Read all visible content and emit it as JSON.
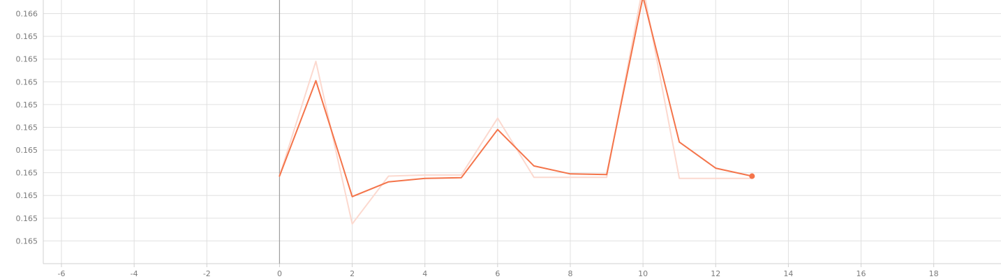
{
  "chart_data": {
    "type": "line",
    "title": "",
    "xlabel": "",
    "ylabel": "",
    "xlim": [
      -6.5,
      19.85
    ],
    "ylim": [
      0,
      11.6
    ],
    "x_ticks": [
      -6,
      -4,
      -2,
      0,
      2,
      4,
      6,
      8,
      10,
      12,
      14,
      16,
      18
    ],
    "y_ticks": [
      {
        "pos": 1,
        "label": "0.165"
      },
      {
        "pos": 2,
        "label": "0.165"
      },
      {
        "pos": 3,
        "label": "0.165"
      },
      {
        "pos": 4,
        "label": "0.165"
      },
      {
        "pos": 5,
        "label": "0.165"
      },
      {
        "pos": 6,
        "label": "0.165"
      },
      {
        "pos": 7,
        "label": "0.165"
      },
      {
        "pos": 8,
        "label": "0.165"
      },
      {
        "pos": 9,
        "label": "0.165"
      },
      {
        "pos": 10,
        "label": "0.165"
      },
      {
        "pos": 11,
        "label": "0.166"
      }
    ],
    "grid": true,
    "series": [
      {
        "role": "raw",
        "color": "#fcd9cf",
        "x": [
          0,
          1,
          2,
          3,
          4,
          5,
          6,
          7,
          8,
          9,
          10,
          11,
          12,
          13
        ],
        "y": [
          3.85,
          8.9,
          1.75,
          3.85,
          3.9,
          3.9,
          6.4,
          3.8,
          3.8,
          3.8,
          12.2,
          3.75,
          3.75,
          3.75
        ]
      },
      {
        "role": "smoothed",
        "color": "#f4744a",
        "x": [
          0,
          1,
          2,
          3,
          4,
          5,
          6,
          7,
          8,
          9,
          10,
          11,
          12,
          13
        ],
        "y": [
          3.85,
          8.05,
          2.95,
          3.6,
          3.75,
          3.78,
          5.9,
          4.3,
          3.95,
          3.92,
          11.75,
          5.35,
          4.2,
          3.85
        ]
      }
    ]
  }
}
